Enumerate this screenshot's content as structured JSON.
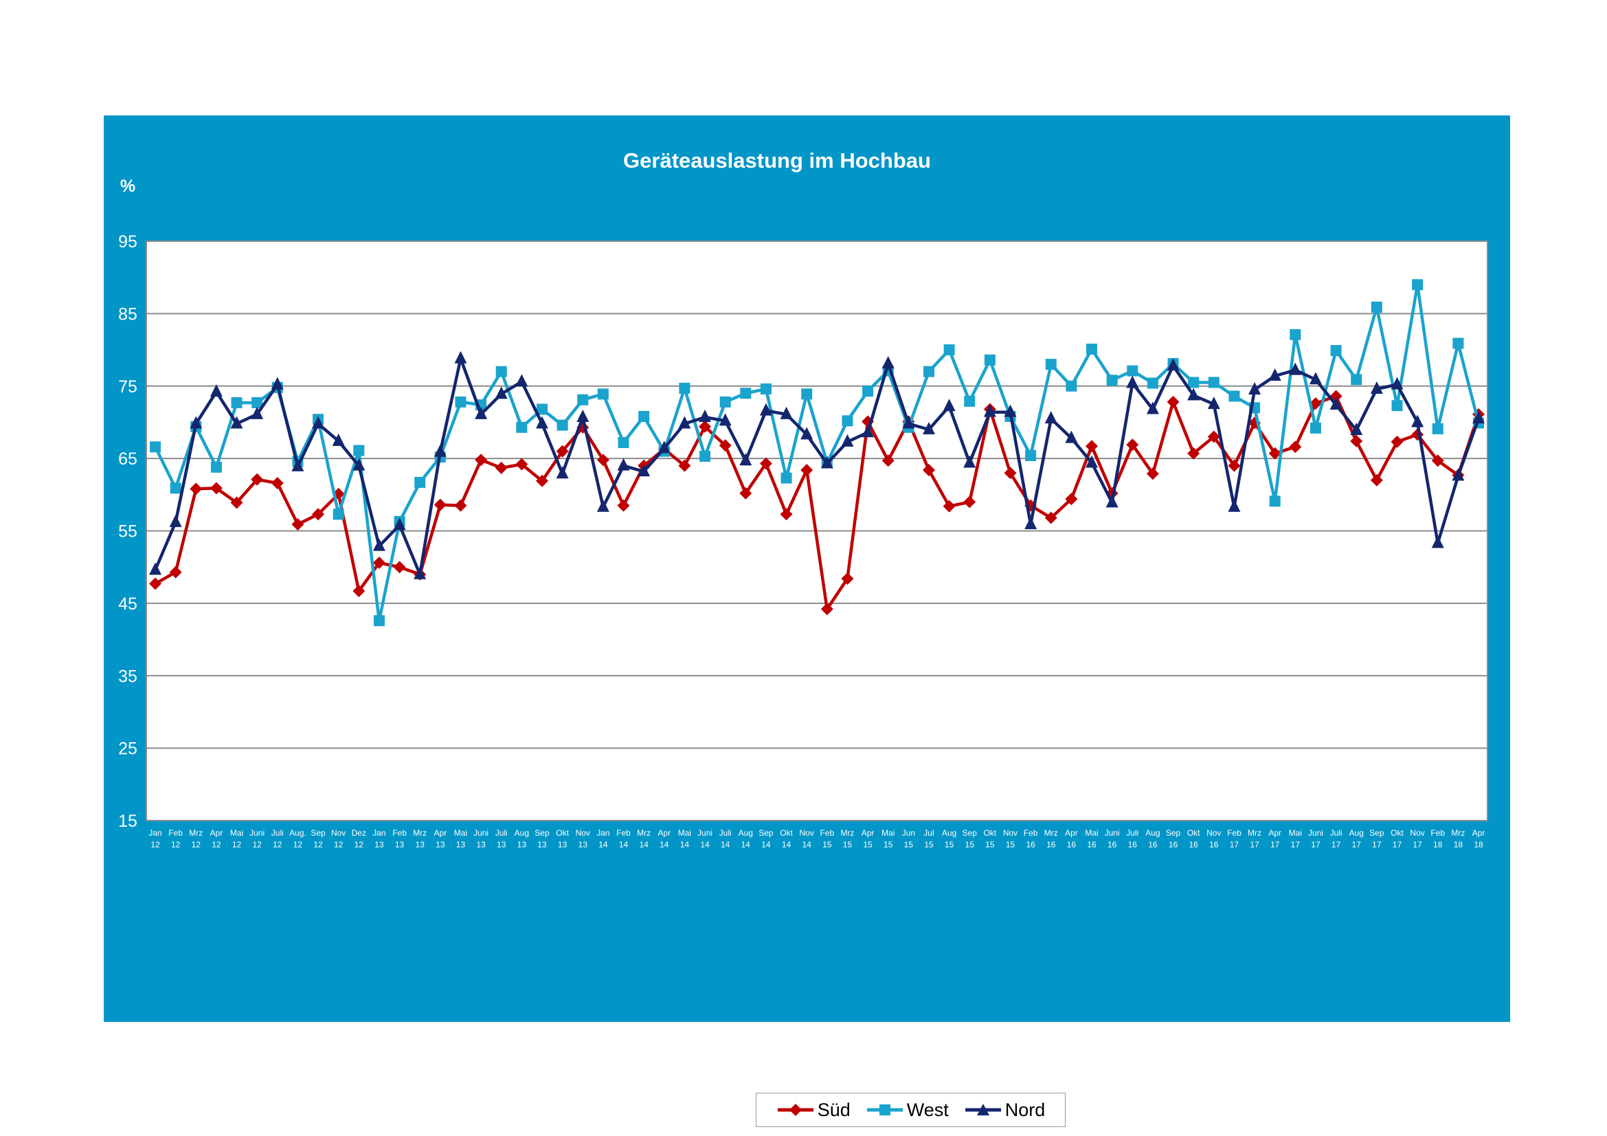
{
  "chart_data": {
    "type": "line",
    "title": "Geräteauslastung im Hochbau",
    "ylabel": "%",
    "ylim": [
      15,
      95
    ],
    "yticks": [
      15,
      25,
      35,
      45,
      55,
      65,
      75,
      85,
      95
    ],
    "grid": true,
    "legend_position": "bottom",
    "categories": [
      [
        "Jan",
        "12"
      ],
      [
        "Feb",
        "12"
      ],
      [
        "Mrz",
        "12"
      ],
      [
        "Apr",
        "12"
      ],
      [
        "Mai",
        "12"
      ],
      [
        "Juni",
        "12"
      ],
      [
        "Juli",
        "12"
      ],
      [
        "Aug.",
        "12"
      ],
      [
        "Sep",
        "12"
      ],
      [
        "Nov",
        "12"
      ],
      [
        "Dez",
        "12"
      ],
      [
        "Jan",
        "13"
      ],
      [
        "Feb",
        "13"
      ],
      [
        "Mrz",
        "13"
      ],
      [
        "Apr",
        "13"
      ],
      [
        "Mai",
        "13"
      ],
      [
        "Juni",
        "13"
      ],
      [
        "Juli",
        "13"
      ],
      [
        "Aug",
        "13"
      ],
      [
        "Sep",
        "13"
      ],
      [
        "Okt",
        "13"
      ],
      [
        "Nov",
        "13"
      ],
      [
        "Jan",
        "14"
      ],
      [
        "Feb",
        "14"
      ],
      [
        "Mrz",
        "14"
      ],
      [
        "Apr",
        "14"
      ],
      [
        "Mai",
        "14"
      ],
      [
        "Juni",
        "14"
      ],
      [
        "Juli",
        "14"
      ],
      [
        "Aug",
        "14"
      ],
      [
        "Sep",
        "14"
      ],
      [
        "Okt",
        "14"
      ],
      [
        "Nov",
        "14"
      ],
      [
        "Feb",
        "15"
      ],
      [
        "Mrz",
        "15"
      ],
      [
        "Apr",
        "15"
      ],
      [
        "Mai",
        "15"
      ],
      [
        "Jun",
        "15"
      ],
      [
        "Jul",
        "15"
      ],
      [
        "Aug",
        "15"
      ],
      [
        "Sep",
        "15"
      ],
      [
        "Okt",
        "15"
      ],
      [
        "Nov",
        "15"
      ],
      [
        "Feb",
        "16"
      ],
      [
        "Mrz",
        "16"
      ],
      [
        "Apr",
        "16"
      ],
      [
        "Mai",
        "16"
      ],
      [
        "Juni",
        "16"
      ],
      [
        "Juli",
        "16"
      ],
      [
        "Aug",
        "16"
      ],
      [
        "Sep",
        "16"
      ],
      [
        "Okt",
        "16"
      ],
      [
        "Nov",
        "16"
      ],
      [
        "Feb",
        "17"
      ],
      [
        "Mrz",
        "17"
      ],
      [
        "Apr",
        "17"
      ],
      [
        "Mai",
        "17"
      ],
      [
        "Juni",
        "17"
      ],
      [
        "Juli",
        "17"
      ],
      [
        "Aug",
        "17"
      ],
      [
        "Sep",
        "17"
      ],
      [
        "Okt",
        "17"
      ],
      [
        "Nov",
        "17"
      ],
      [
        "Feb",
        "18"
      ],
      [
        "Mrz",
        "18"
      ],
      [
        "Apr",
        "18"
      ]
    ],
    "series": [
      {
        "name": "Süd",
        "color": "#c00000",
        "marker": "diamond",
        "values": [
          47.7,
          49.3,
          60.8,
          60.9,
          58.9,
          62.1,
          61.6,
          55.9,
          57.3,
          60.1,
          46.7,
          50.6,
          50.0,
          49.0,
          58.6,
          58.5,
          64.8,
          63.7,
          64.2,
          61.9,
          66.0,
          69.3,
          64.8,
          58.5,
          64.0,
          66.3,
          64.0,
          69.4,
          66.8,
          60.2,
          64.3,
          57.3,
          63.4,
          44.2,
          48.4,
          70.1,
          64.7,
          70.1,
          63.4,
          58.4,
          59.0,
          71.8,
          63.0,
          58.5,
          56.8,
          59.4,
          66.7,
          60.2,
          66.9,
          62.9,
          72.8,
          65.7,
          68.0,
          64.0,
          69.9,
          65.7,
          66.6,
          72.6,
          73.6,
          67.4,
          62.0,
          67.3,
          68.3,
          64.7,
          62.7,
          71.1
        ]
      },
      {
        "name": "West",
        "color": "#1aa3cc",
        "marker": "square",
        "values": [
          66.6,
          60.9,
          69.4,
          63.8,
          72.7,
          72.7,
          74.8,
          64.6,
          70.4,
          57.3,
          66.1,
          42.6,
          56.3,
          61.7,
          65.2,
          72.8,
          72.4,
          77.0,
          69.3,
          71.8,
          69.6,
          73.1,
          73.9,
          67.2,
          70.8,
          66.0,
          74.7,
          65.3,
          72.8,
          74.0,
          74.6,
          62.3,
          73.9,
          64.4,
          70.2,
          74.3,
          77.1,
          69.3,
          77.0,
          80.0,
          72.9,
          78.6,
          70.8,
          65.4,
          78.0,
          75.0,
          80.1,
          75.8,
          77.1,
          75.4,
          78.1,
          75.5,
          75.5,
          73.6,
          72.0,
          59.1,
          82.1,
          69.2,
          79.9,
          75.9,
          85.9,
          72.3,
          89.0,
          69.1,
          80.9,
          69.9
        ]
      },
      {
        "name": "Nord",
        "color": "#13266e",
        "marker": "triangle",
        "values": [
          49.6,
          56.2,
          69.8,
          74.2,
          69.8,
          71.1,
          75.2,
          63.9,
          69.8,
          67.4,
          64.0,
          52.9,
          55.8,
          49.0,
          65.9,
          78.8,
          71.1,
          73.9,
          75.6,
          69.8,
          62.9,
          70.7,
          58.3,
          64.0,
          63.2,
          66.4,
          69.8,
          70.7,
          70.2,
          64.7,
          71.6,
          71.1,
          68.3,
          64.3,
          67.3,
          68.6,
          78.1,
          69.8,
          69.0,
          72.2,
          64.4,
          71.4,
          71.4,
          55.9,
          70.5,
          67.8,
          64.4,
          58.9,
          75.4,
          71.8,
          77.8,
          73.7,
          72.5,
          58.3,
          74.5,
          76.4,
          77.2,
          75.9,
          72.4,
          68.9,
          74.6,
          75.2,
          70.0,
          53.3,
          62.6,
          70.5
        ]
      }
    ]
  }
}
